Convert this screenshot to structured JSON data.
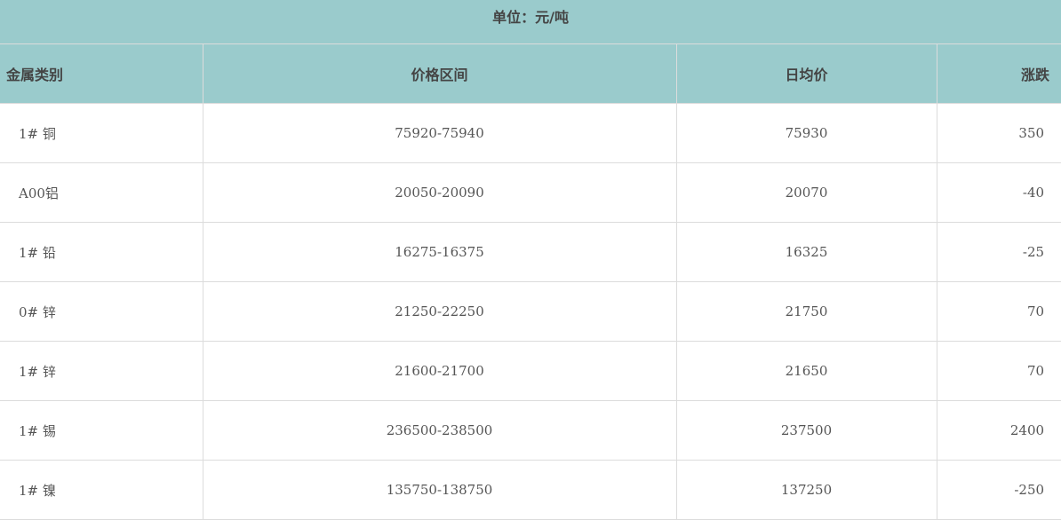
{
  "unit_label": "单位：元/吨",
  "columns": [
    "金属类别",
    "价格区间",
    "日均价",
    "涨跌"
  ],
  "rows": [
    {
      "metal": "1# 铜",
      "range": "75920-75940",
      "avg": "75930",
      "change": "350"
    },
    {
      "metal": "A00铝",
      "range": "20050-20090",
      "avg": "20070",
      "change": "-40"
    },
    {
      "metal": "1# 铅",
      "range": "16275-16375",
      "avg": "16325",
      "change": "-25"
    },
    {
      "metal": "0# 锌",
      "range": "21250-22250",
      "avg": "21750",
      "change": "70"
    },
    {
      "metal": "1# 锌",
      "range": "21600-21700",
      "avg": "21650",
      "change": "70"
    },
    {
      "metal": "1# 锡",
      "range": "236500-238500",
      "avg": "237500",
      "change": "2400"
    },
    {
      "metal": "1# 镍",
      "range": "135750-138750",
      "avg": "137250",
      "change": "-250"
    }
  ],
  "colors": {
    "header_bg": "#9acbcc",
    "border": "#dcdcdc"
  }
}
